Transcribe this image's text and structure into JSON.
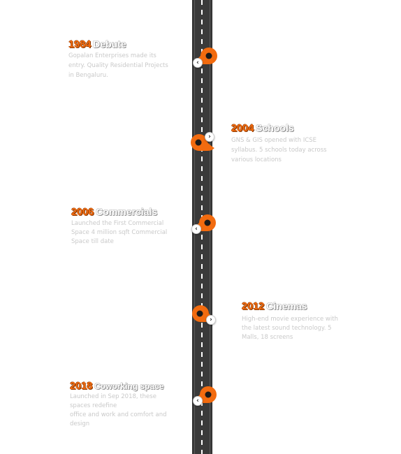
{
  "accent_color": "#f26b0f",
  "road_color": "#3a3a3a",
  "timeline": [
    {
      "year": "1984",
      "title": "Debute",
      "desc": "Gopalan Enterprises made its entry. Quality Residential Projects in Bengaluru.",
      "arrow": "previous-arrow-icon"
    },
    {
      "year": "2004",
      "title": "Schools",
      "desc": "GNS & GIS opened with ICSE syllabus. 5 schools today across various locations",
      "arrow": "next-arrow-icon"
    },
    {
      "year": "2006",
      "title": "Commercials",
      "desc": "Launched the First Commercial Space 4 million sqft Commercial Space till date",
      "arrow": "previous-arrow-icon"
    },
    {
      "year": "2012",
      "title": "Cinemas",
      "desc": "High-end movie experience with the latest sound technology. 5 Malls, 18 screens",
      "arrow": "next-arrow-icon"
    },
    {
      "year": "2018",
      "title": "Coworking space",
      "desc_lines": [
        "Launched in Sep 2018, these spaces redefine",
        "office and work and comfort and design"
      ],
      "arrow": "previous-arrow-icon"
    }
  ],
  "arrow_glyphs": {
    "prev": "‹",
    "next": "›"
  }
}
